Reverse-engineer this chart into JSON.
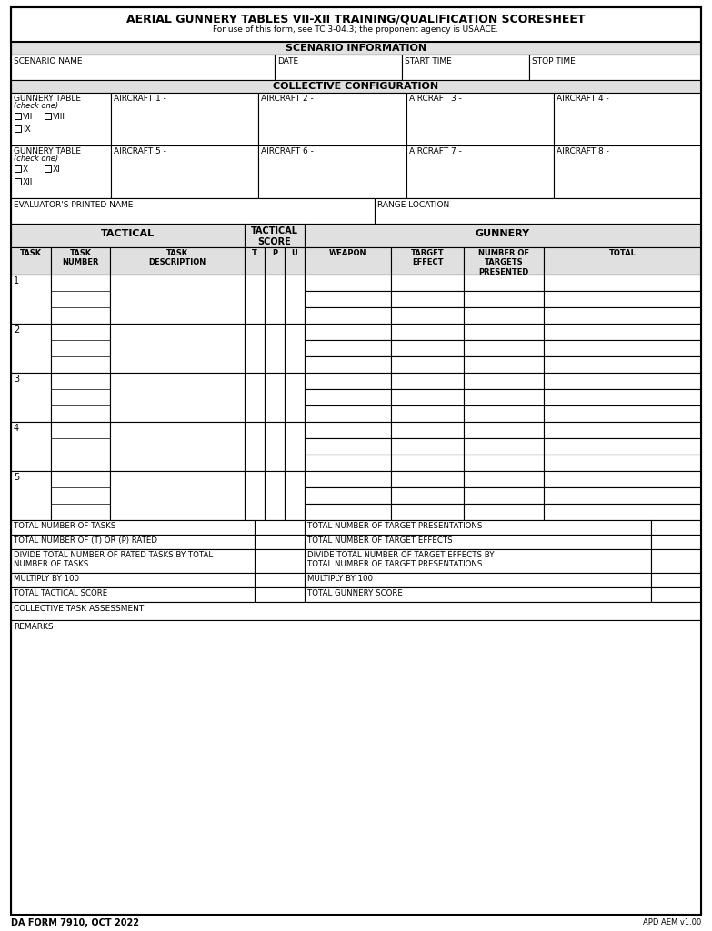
{
  "title_line1": "AERIAL GUNNERY TABLES VII-XII TRAINING/QUALIFICATION SCORESHEET",
  "title_line2": "For use of this form, see TC 3-04.3; the proponent agency is USAACE.",
  "section_scenario": "SCENARIO INFORMATION",
  "section_collective": "COLLECTIVE CONFIGURATION",
  "section_tactical": "TACTICAL",
  "section_gunnery": "GUNNERY",
  "form_number": "DA FORM 7910, OCT 2022",
  "apd": "APD AEM v1.00",
  "bg_header": "#e0e0e0",
  "bg_white": "#ffffff",
  "border_color": "#000000"
}
